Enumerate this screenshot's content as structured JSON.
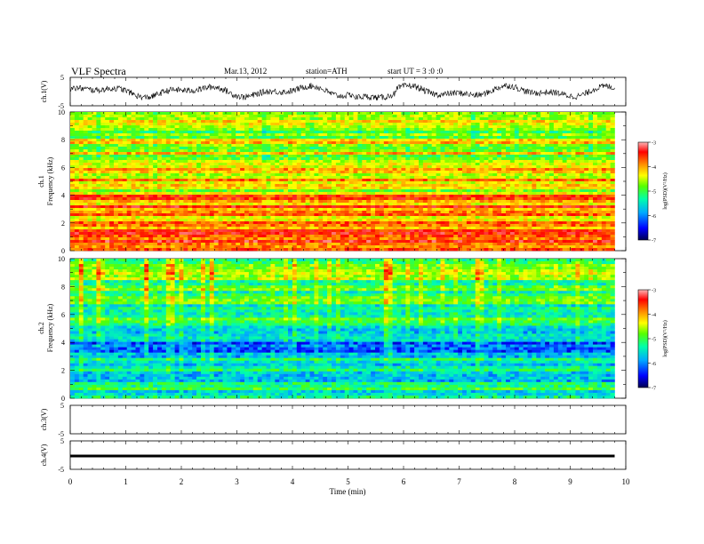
{
  "header": {
    "title": "VLF  Spectra",
    "date": "Mar.13, 2012",
    "station": "station=ATH",
    "start": "start  UT  =   3 :0  :0"
  },
  "chart_data": [
    {
      "id": "ch1-waveform",
      "type": "line",
      "ylabel": "ch.1(V)",
      "ylim": [
        -5,
        5
      ],
      "yticks": [
        "5",
        "-5"
      ],
      "xlim": [
        0,
        10
      ],
      "x_end": 9.8,
      "note": "noisy waveform, roughly ±2.5 V with slow envelope dips near 5.5–6 min"
    },
    {
      "id": "ch1-spectrogram",
      "type": "heatmap",
      "ylabel": "ch.1\nFrequency  (kHz)",
      "ylim": [
        0,
        10
      ],
      "yticks": [
        "0",
        "2",
        "4",
        "6",
        "8",
        "10"
      ],
      "xlim": [
        0,
        10
      ],
      "x_end": 9.8,
      "colorbar": {
        "label": "log(PSD)(V²/Hz)",
        "range": [
          -7,
          -3
        ],
        "ticks": [
          "-3",
          "-4",
          "-5",
          "-6",
          "-7"
        ]
      },
      "band_levels_by_khz": [
        -3.7,
        -3.9,
        -4.2,
        -4.0,
        -4.6,
        -4.3,
        -4.7,
        -4.6,
        -4.8,
        -4.7
      ]
    },
    {
      "id": "ch2-spectrogram",
      "type": "heatmap",
      "ylabel": "ch.2\nFrequency  (kHz)",
      "ylim": [
        0,
        10
      ],
      "yticks": [
        "0",
        "2",
        "4",
        "6",
        "8",
        "10"
      ],
      "xlim": [
        0,
        10
      ],
      "x_end": 9.8,
      "colorbar": {
        "label": "log(PSD)(V²/Hz)",
        "range": [
          -7,
          -3
        ],
        "ticks": [
          "-3",
          "-4",
          "-5",
          "-6",
          "-7"
        ]
      },
      "band_levels_by_khz": [
        -5.6,
        -5.5,
        -5.7,
        -5.9,
        -5.9,
        -5.4,
        -5.3,
        -5.2,
        -5.1,
        -5.0
      ]
    },
    {
      "id": "ch3-waveform",
      "type": "line",
      "ylabel": "ch.3(V)",
      "ylim": [
        -5,
        5
      ],
      "yticks": [
        "5",
        "-5"
      ],
      "xlim": [
        0,
        10
      ],
      "note": "no signal"
    },
    {
      "id": "ch4-waveform",
      "type": "line",
      "ylabel": "ch.4(V)",
      "ylim": [
        -5,
        5
      ],
      "yticks": [
        "5",
        "-5"
      ],
      "xlim": [
        0,
        10
      ],
      "x_end": 9.8,
      "level": -0.3,
      "note": "flat thick trace near 0 V"
    }
  ],
  "x_axis": {
    "label": "Time  (min)",
    "ticks": [
      "0",
      "1",
      "2",
      "3",
      "4",
      "5",
      "6",
      "7",
      "8",
      "9",
      "10"
    ]
  },
  "colormap": [
    "#000050",
    "#0000ff",
    "#00aaff",
    "#00ffaa",
    "#55ff00",
    "#ffff00",
    "#ff8800",
    "#ff0000",
    "#ffb4b4"
  ]
}
